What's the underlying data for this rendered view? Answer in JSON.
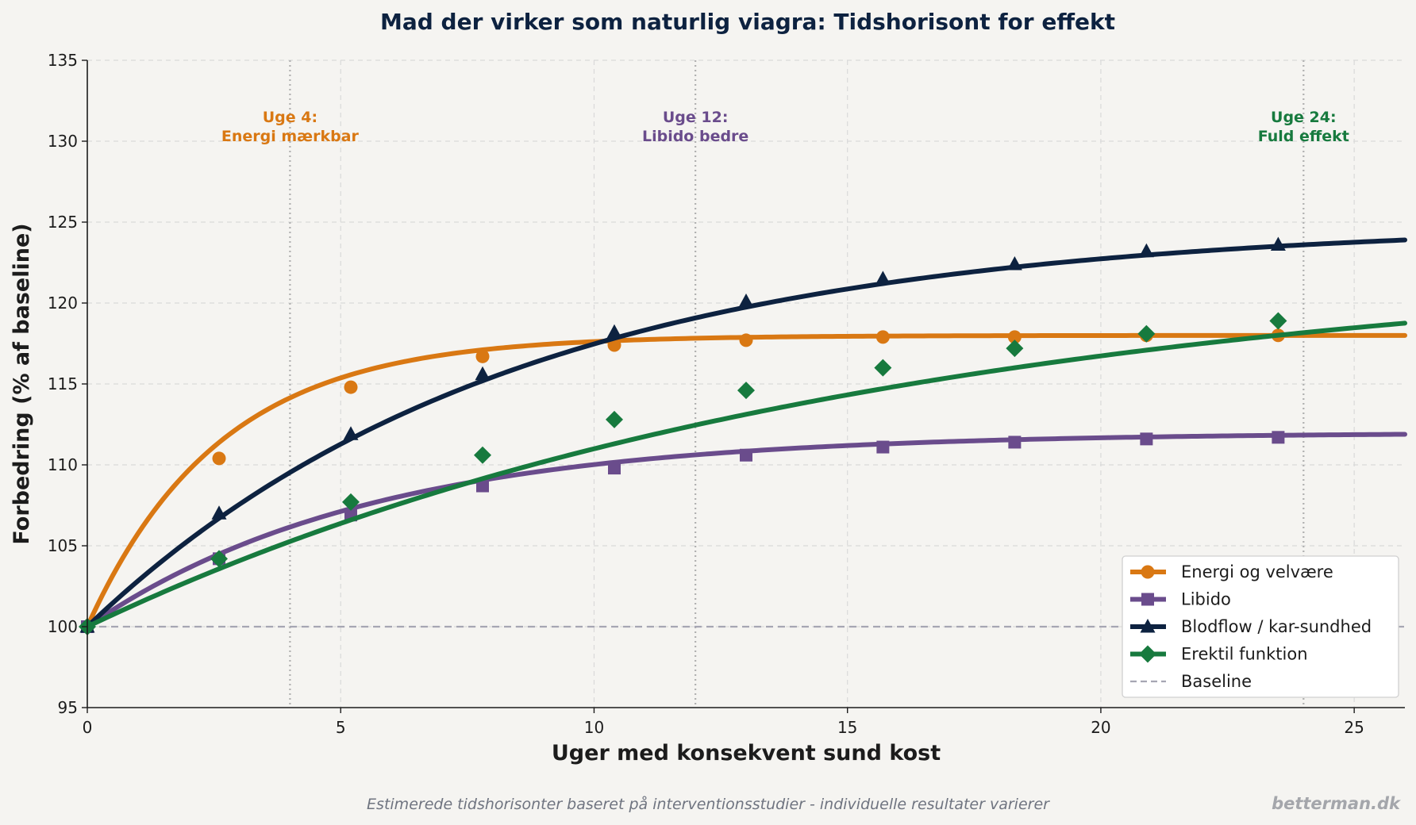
{
  "chart_data": {
    "type": "line",
    "title": "Mad der virker som naturlig viagra: Tidshorisont for effekt",
    "xlabel": "Uger med konsekvent sund kost",
    "ylabel": "Forbedring (% af baseline)",
    "xlim": [
      0,
      26
    ],
    "ylim": [
      95,
      135
    ],
    "x_ticks": [
      0,
      5,
      10,
      15,
      20,
      25
    ],
    "y_ticks": [
      95,
      100,
      105,
      110,
      115,
      120,
      125,
      130,
      135
    ],
    "grid": true,
    "legend_position": "lower-right",
    "marker_x": [
      0,
      2.6,
      5.2,
      7.8,
      10.4,
      13.0,
      15.7,
      18.3,
      20.9,
      23.5
    ],
    "series": [
      {
        "name": "Energi og velvære",
        "color": "#d97813",
        "marker": "circle",
        "curve": {
          "base": 100,
          "amplitude": 18,
          "rate": 0.385
        },
        "values": [
          100,
          110.4,
          114.8,
          116.7,
          117.4,
          117.7,
          117.9,
          117.9,
          118.0,
          118.0
        ]
      },
      {
        "name": "Libido",
        "color": "#6a4c8c",
        "marker": "square",
        "curve": {
          "base": 100,
          "amplitude": 12,
          "rate": 0.18
        },
        "values": [
          100,
          104.2,
          106.9,
          108.7,
          109.8,
          110.6,
          111.1,
          111.4,
          111.6,
          111.7
        ]
      },
      {
        "name": "Blodflow / kar-sundhed",
        "color": "#0d2240",
        "marker": "triangle",
        "curve": {
          "base": 100,
          "amplitude": 25,
          "rate": 0.12
        },
        "values": [
          100,
          107.0,
          111.9,
          115.6,
          118.2,
          120.1,
          121.5,
          122.4,
          123.2,
          123.6
        ]
      },
      {
        "name": "Erektil funktion",
        "color": "#177a3e",
        "marker": "diamond",
        "curve": {
          "base": 100,
          "amplitude": 23,
          "rate": 0.065
        },
        "values": [
          100,
          104.2,
          107.7,
          110.6,
          112.8,
          114.6,
          116.0,
          117.2,
          118.1,
          118.9
        ]
      }
    ],
    "baseline": {
      "name": "Baseline",
      "value": 100,
      "color": "#a6a6b3"
    },
    "milestones": [
      {
        "week": 4,
        "line1": "Uge 4:",
        "line2": "Energi mærkbar",
        "color": "#d97813"
      },
      {
        "week": 12,
        "line1": "Uge 12:",
        "line2": "Libido bedre",
        "color": "#6a4c8c"
      },
      {
        "week": 24,
        "line1": "Uge 24:",
        "line2": "Fuld effekt",
        "color": "#177a3e"
      }
    ]
  },
  "footer": {
    "note": "Estimerede tidshorisonter baseret på interventionsstudier - individuelle resultater varierer",
    "brand": "betterman.dk"
  }
}
